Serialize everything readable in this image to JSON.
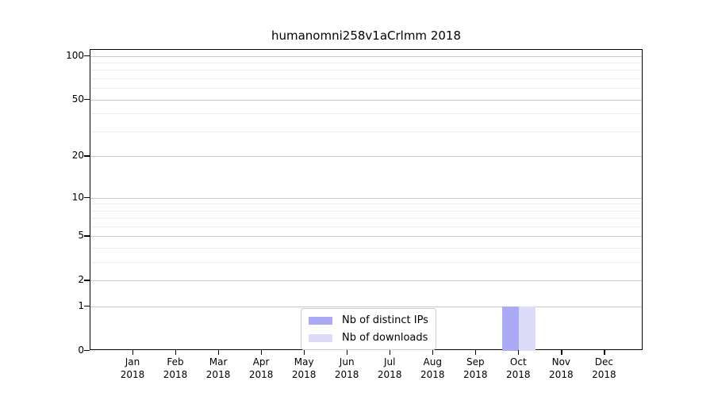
{
  "title": "humanomni258v1aCrlmm 2018",
  "chart_data": {
    "type": "bar",
    "title": "humanomni258v1aCrlmm 2018",
    "categories": [
      "Jan 2018",
      "Feb 2018",
      "Mar 2018",
      "Apr 2018",
      "May 2018",
      "Jun 2018",
      "Jul 2018",
      "Aug 2018",
      "Sep 2018",
      "Oct 2018",
      "Nov 2018",
      "Dec 2018"
    ],
    "series": [
      {
        "name": "Nb of distinct IPs",
        "color": "#aaaaf5",
        "values": [
          0,
          0,
          0,
          0,
          0,
          0,
          0,
          0,
          0,
          1,
          0,
          0
        ]
      },
      {
        "name": "Nb of downloads",
        "color": "#dcdcf8",
        "values": [
          0,
          0,
          0,
          0,
          0,
          0,
          0,
          0,
          0,
          1,
          0,
          0
        ]
      }
    ],
    "xlabel": "",
    "ylabel": "",
    "y_scale": "log10(1+y)",
    "y_major_ticks": [
      0,
      1,
      2,
      5,
      10,
      20,
      50,
      100
    ],
    "y_minor_ticks": [
      3,
      4,
      6,
      7,
      8,
      9,
      30,
      40,
      60,
      70,
      80,
      90
    ],
    "ylim": [
      0,
      109
    ],
    "grid": "horizontal",
    "legend_position": "lower center"
  },
  "legend": {
    "items": [
      {
        "label": "Nb of distinct IPs",
        "color": "#aaaaf5"
      },
      {
        "label": "Nb of downloads",
        "color": "#dcdcf8"
      }
    ]
  },
  "colors": {
    "background": "#ffffff",
    "spine": "#000000",
    "grid_major": "#c8c8c8",
    "grid_minor": "#ececec",
    "text": "#000000"
  }
}
